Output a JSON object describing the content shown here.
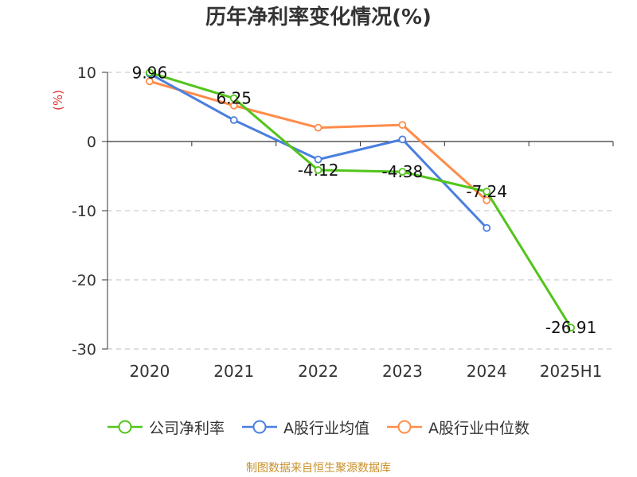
{
  "chart_data": {
    "type": "line",
    "title": "历年净利率变化情况(%)",
    "ylabel": "(%)",
    "xlabel": "",
    "categories": [
      "2020",
      "2021",
      "2022",
      "2023",
      "2024",
      "2025H1"
    ],
    "ylim": [
      -30,
      10
    ],
    "yticks": [
      10,
      0,
      -10,
      -20,
      -30
    ],
    "grid": true,
    "legend_position": "bottom",
    "series": [
      {
        "name": "公司净利率",
        "color": "#52c41a",
        "values": [
          9.96,
          6.25,
          -4.12,
          -4.38,
          -7.24,
          -26.91
        ],
        "data_labels": [
          "9.96",
          "6.25",
          "-4.12",
          "-4.38",
          "-7.24",
          "-26.91"
        ]
      },
      {
        "name": "A股行业均值",
        "color": "#4a7fe0",
        "values": [
          9.8,
          3.1,
          -2.6,
          0.3,
          -12.5,
          null
        ]
      },
      {
        "name": "A股行业中位数",
        "color": "#ff8c4a",
        "values": [
          8.7,
          5.2,
          2.0,
          2.4,
          -8.5,
          null
        ]
      }
    ]
  },
  "footer": {
    "source": "制图数据来自恒生聚源数据库"
  }
}
